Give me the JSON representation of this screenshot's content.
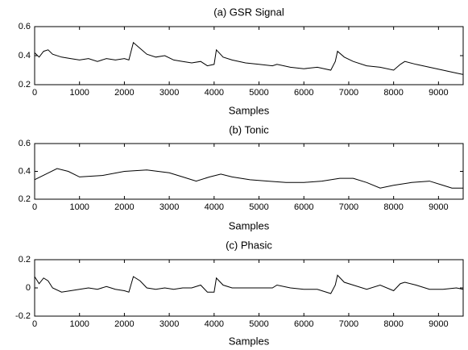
{
  "chart_data": [
    {
      "type": "line",
      "title": "(a) GSR Signal",
      "xlabel": "Samples",
      "color": "#000000",
      "xlim": [
        0,
        9550
      ],
      "ylim": [
        0.2,
        0.6
      ],
      "xticks": [
        0,
        1000,
        2000,
        3000,
        4000,
        5000,
        6000,
        7000,
        8000,
        9000
      ],
      "yticks": [
        0.2,
        0.4,
        0.6
      ],
      "x": [
        0,
        100,
        200,
        300,
        400,
        600,
        800,
        1000,
        1200,
        1400,
        1600,
        1800,
        2000,
        2100,
        2200,
        2350,
        2500,
        2700,
        2900,
        3100,
        3300,
        3500,
        3700,
        3850,
        4000,
        4050,
        4200,
        4400,
        4700,
        5000,
        5300,
        5400,
        5700,
        6000,
        6300,
        6600,
        6700,
        6750,
        6900,
        7100,
        7400,
        7700,
        8000,
        8150,
        8250,
        8500,
        8800,
        9100,
        9400,
        9550
      ],
      "values": [
        0.42,
        0.39,
        0.43,
        0.44,
        0.41,
        0.39,
        0.38,
        0.37,
        0.38,
        0.36,
        0.38,
        0.37,
        0.38,
        0.37,
        0.49,
        0.45,
        0.41,
        0.39,
        0.4,
        0.37,
        0.36,
        0.35,
        0.36,
        0.33,
        0.34,
        0.44,
        0.39,
        0.37,
        0.35,
        0.34,
        0.33,
        0.34,
        0.32,
        0.31,
        0.32,
        0.3,
        0.36,
        0.43,
        0.39,
        0.36,
        0.33,
        0.32,
        0.3,
        0.34,
        0.36,
        0.34,
        0.32,
        0.3,
        0.28,
        0.27
      ]
    },
    {
      "type": "line",
      "title": "(b) Tonic",
      "xlabel": "Samples",
      "color": "#000000",
      "xlim": [
        0,
        9550
      ],
      "ylim": [
        0.2,
        0.6
      ],
      "xticks": [
        0,
        1000,
        2000,
        3000,
        4000,
        5000,
        6000,
        7000,
        8000,
        9000
      ],
      "yticks": [
        0.2,
        0.4,
        0.6
      ],
      "x": [
        0,
        250,
        500,
        750,
        1000,
        1500,
        2000,
        2500,
        3000,
        3300,
        3600,
        3900,
        4150,
        4400,
        4800,
        5200,
        5600,
        6000,
        6400,
        6800,
        7100,
        7400,
        7700,
        8000,
        8400,
        8800,
        9100,
        9300,
        9550
      ],
      "values": [
        0.34,
        0.38,
        0.42,
        0.4,
        0.36,
        0.37,
        0.4,
        0.41,
        0.39,
        0.36,
        0.33,
        0.36,
        0.38,
        0.36,
        0.34,
        0.33,
        0.32,
        0.32,
        0.33,
        0.35,
        0.35,
        0.32,
        0.28,
        0.3,
        0.32,
        0.33,
        0.3,
        0.28,
        0.28
      ]
    },
    {
      "type": "line",
      "title": "(c) Phasic",
      "xlabel": "Samples",
      "color": "#000000",
      "xlim": [
        0,
        9550
      ],
      "ylim": [
        -0.2,
        0.2
      ],
      "xticks": [
        0,
        1000,
        2000,
        3000,
        4000,
        5000,
        6000,
        7000,
        8000,
        9000
      ],
      "yticks": [
        -0.2,
        0,
        0.2
      ],
      "x": [
        0,
        100,
        200,
        300,
        400,
        600,
        800,
        1000,
        1200,
        1400,
        1600,
        1800,
        2000,
        2100,
        2200,
        2350,
        2500,
        2700,
        2900,
        3100,
        3300,
        3500,
        3700,
        3850,
        4000,
        4050,
        4200,
        4400,
        4700,
        5000,
        5300,
        5400,
        5700,
        6000,
        6300,
        6600,
        6700,
        6750,
        6900,
        7100,
        7400,
        7700,
        8000,
        8150,
        8250,
        8500,
        8800,
        9100,
        9400,
        9550
      ],
      "values": [
        0.08,
        0.03,
        0.07,
        0.05,
        0.0,
        -0.03,
        -0.02,
        -0.01,
        0.0,
        -0.01,
        0.01,
        -0.01,
        -0.02,
        -0.03,
        0.08,
        0.05,
        0.0,
        -0.01,
        0.0,
        -0.01,
        0.0,
        0.0,
        0.02,
        -0.03,
        -0.03,
        0.07,
        0.02,
        0.0,
        0.0,
        0.0,
        0.0,
        0.02,
        0.0,
        -0.01,
        -0.01,
        -0.04,
        0.02,
        0.09,
        0.04,
        0.02,
        -0.01,
        0.02,
        -0.02,
        0.03,
        0.04,
        0.02,
        -0.01,
        -0.01,
        0.0,
        -0.01
      ]
    }
  ]
}
